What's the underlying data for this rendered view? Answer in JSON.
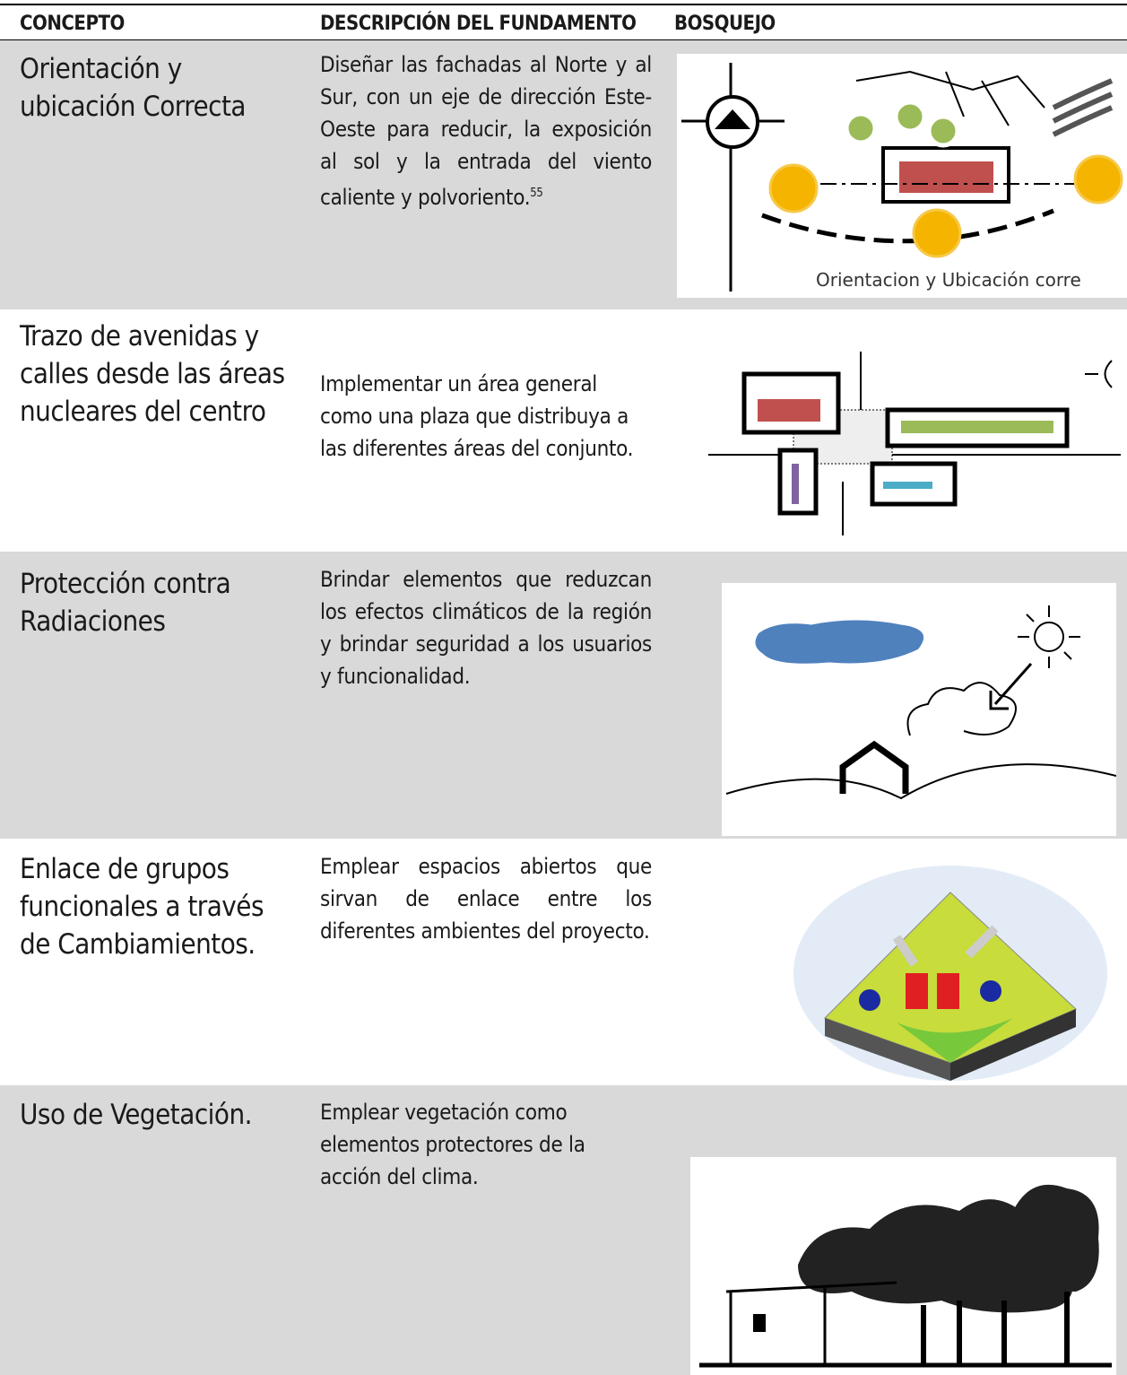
{
  "header": {
    "concept": "CONCEPTO",
    "description": "DESCRIPCIÓN DEL FUNDAMENTO",
    "sketch": "BOSQUEJO"
  },
  "rows": [
    {
      "concept": "Orientación y ubicación Correcta",
      "description": "Diseñar las fachadas al Norte y al Sur, con un eje de dirección Este-Oeste para reducir, la exposición al sol y la entrada del viento caliente y polvoriento.",
      "footnote": "55",
      "sketch_caption": "Orientacion y Ubicación corre"
    },
    {
      "concept": "Trazo de avenidas y calles desde las áreas nucleares del centro",
      "description": "Implementar un área general como una plaza que distribuya a las diferentes áreas del conjunto."
    },
    {
      "concept": "Protección contra Radiaciones",
      "description": "Brindar elementos que reduzcan los efectos climáticos de la región y brindar seguridad a los usuarios y funcionalidad."
    },
    {
      "concept": "Enlace de grupos funcionales a través de Cambiamientos.",
      "description": "Emplear espacios abiertos que sirvan de enlace entre los diferentes ambientes del proyecto."
    },
    {
      "concept": "Uso de Vegetación.",
      "description": "Emplear vegetación como elementos protectores de la acción del clima."
    }
  ]
}
